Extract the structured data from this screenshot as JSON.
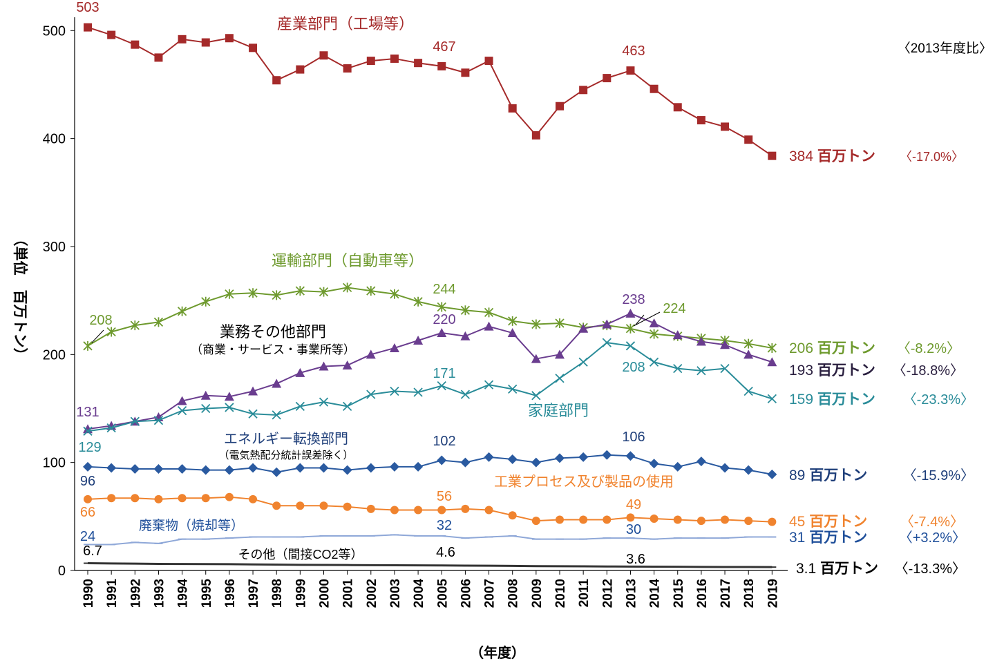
{
  "chart_data": {
    "type": "line",
    "ylabel": "（単位　百万トン）",
    "xlabel": "（年度）",
    "ratio_header": "〈2013年度比〉",
    "ylim": [
      0,
      520
    ],
    "yticks": [
      0,
      100,
      200,
      300,
      400,
      500
    ],
    "grid": false,
    "x": [
      "1990",
      "1991",
      "1992",
      "1993",
      "1994",
      "1995",
      "1996",
      "1997",
      "1998",
      "1999",
      "2000",
      "2001",
      "2002",
      "2003",
      "2004",
      "2005",
      "2006",
      "2007",
      "2008",
      "2009",
      "2010",
      "2011",
      "2012",
      "2013",
      "2014",
      "2015",
      "2016",
      "2017",
      "2018",
      "2019"
    ],
    "series": [
      {
        "key": "industry",
        "name": "産業部門（工場等）",
        "sublabel": "",
        "color": "#A52A2A",
        "marker": "square",
        "values": [
          503,
          496,
          487,
          475,
          492,
          489,
          493,
          484,
          454,
          464,
          477,
          465,
          472,
          474,
          470,
          467,
          461,
          472,
          428,
          403,
          430,
          445,
          456,
          463,
          446,
          429,
          417,
          411,
          399,
          384
        ],
        "point_labels": [
          {
            "i": 0,
            "text": "503"
          },
          {
            "i": 15,
            "text": "467"
          },
          {
            "i": 23,
            "text": "463"
          }
        ],
        "end_value": "384",
        "end_unit": "百万トン",
        "ratio": "〈-17.0%〉"
      },
      {
        "key": "transport",
        "name": "運輸部門（自動車等）",
        "sublabel": "",
        "color": "#6E9A2E",
        "marker": "asterisk",
        "values": [
          208,
          221,
          227,
          230,
          240,
          249,
          256,
          257,
          255,
          259,
          258,
          262,
          259,
          256,
          249,
          244,
          241,
          239,
          231,
          228,
          229,
          225,
          227,
          224,
          219,
          217,
          215,
          213,
          210,
          206
        ],
        "point_labels": [
          {
            "i": 0,
            "text": "208"
          },
          {
            "i": 15,
            "text": "244"
          },
          {
            "i": 23,
            "text": "224"
          }
        ],
        "end_value": "206",
        "end_unit": "百万トン",
        "ratio": "〈-8.2%〉"
      },
      {
        "key": "commercial",
        "name": "業務その他部門",
        "sublabel": "（商業・サービス・事業所等）",
        "color": "#6A3D8F",
        "marker": "triangle",
        "values": [
          131,
          134,
          138,
          142,
          157,
          162,
          161,
          166,
          173,
          183,
          189,
          190,
          200,
          206,
          213,
          220,
          217,
          226,
          220,
          196,
          200,
          224,
          228,
          238,
          229,
          218,
          212,
          209,
          200,
          193
        ],
        "point_labels": [
          {
            "i": 0,
            "text": "131"
          },
          {
            "i": 15,
            "text": "220"
          },
          {
            "i": 23,
            "text": "238"
          }
        ],
        "end_value": "193",
        "end_unit": "百万トン",
        "ratio": "〈-18.8%〉"
      },
      {
        "key": "household",
        "name": "家庭部門",
        "sublabel": "",
        "color": "#2A8C99",
        "marker": "x",
        "values": [
          129,
          132,
          138,
          139,
          148,
          150,
          151,
          145,
          144,
          152,
          156,
          152,
          163,
          166,
          165,
          171,
          163,
          172,
          168,
          162,
          178,
          193,
          211,
          208,
          193,
          187,
          185,
          187,
          166,
          159
        ],
        "point_labels": [
          {
            "i": 0,
            "text": "129"
          },
          {
            "i": 15,
            "text": "171"
          },
          {
            "i": 23,
            "text": "208"
          }
        ],
        "end_value": "159",
        "end_unit": "百万トン",
        "ratio": "〈-23.3%〉"
      },
      {
        "key": "energy",
        "name": "エネルギー転換部門",
        "sublabel": "（電気熱配分統計誤差除く）",
        "color": "#2A5AA0",
        "marker": "diamond",
        "values": [
          96,
          95,
          94,
          94,
          94,
          93,
          93,
          95,
          91,
          95,
          95,
          93,
          95,
          96,
          96,
          102,
          100,
          105,
          103,
          100,
          104,
          105,
          107,
          106,
          99,
          96,
          101,
          95,
          93,
          89
        ],
        "point_labels": [
          {
            "i": 0,
            "text": "96"
          },
          {
            "i": 15,
            "text": "102"
          },
          {
            "i": 23,
            "text": "106"
          }
        ],
        "end_value": "89",
        "end_unit": "百万トン",
        "ratio": "〈-15.9%〉"
      },
      {
        "key": "process",
        "name": "工業プロセス及び製品の使用",
        "sublabel": "",
        "color": "#F0832E",
        "marker": "circle",
        "values": [
          66,
          67,
          67,
          66,
          67,
          67,
          68,
          66,
          60,
          60,
          60,
          59,
          57,
          56,
          56,
          56,
          57,
          56,
          51,
          46,
          47,
          47,
          47,
          49,
          48,
          47,
          46,
          47,
          46,
          45
        ],
        "point_labels": [
          {
            "i": 0,
            "text": "66"
          },
          {
            "i": 15,
            "text": "56"
          },
          {
            "i": 23,
            "text": "49"
          }
        ],
        "end_value": "45",
        "end_unit": "百万トン",
        "ratio": "〈-7.4%〉"
      },
      {
        "key": "waste",
        "name": "廃棄物（焼却等）",
        "sublabel": "",
        "color": "#8FA8D8",
        "marker": "dash",
        "values": [
          24,
          24,
          26,
          25,
          29,
          29,
          30,
          31,
          31,
          31,
          32,
          32,
          32,
          33,
          32,
          32,
          30,
          31,
          32,
          29,
          29,
          29,
          30,
          30,
          29,
          30,
          30,
          30,
          31,
          31
        ],
        "point_labels": [
          {
            "i": 0,
            "text": "24"
          },
          {
            "i": 15,
            "text": "32"
          },
          {
            "i": 23,
            "text": "30"
          }
        ],
        "end_value": "31",
        "end_unit": "百万トン",
        "ratio": "〈+3.2%〉"
      },
      {
        "key": "other",
        "name": "その他（間接CO2等）",
        "sublabel": "",
        "color": "#333333",
        "marker": "dash",
        "values": [
          6.7,
          6.5,
          6.3,
          6.1,
          6.0,
          5.9,
          5.8,
          5.6,
          5.4,
          5.2,
          5.1,
          5.0,
          4.9,
          4.8,
          4.7,
          4.6,
          4.5,
          4.4,
          4.2,
          4.0,
          3.9,
          3.8,
          3.7,
          3.6,
          3.5,
          3.4,
          3.3,
          3.2,
          3.2,
          3.1
        ],
        "point_labels": [
          {
            "i": 0,
            "text": "6.7"
          },
          {
            "i": 15,
            "text": "4.6"
          },
          {
            "i": 23,
            "text": "3.6"
          }
        ],
        "end_value": "3.1",
        "end_unit": "百万トン",
        "ratio": "〈-13.3%〉"
      }
    ]
  }
}
